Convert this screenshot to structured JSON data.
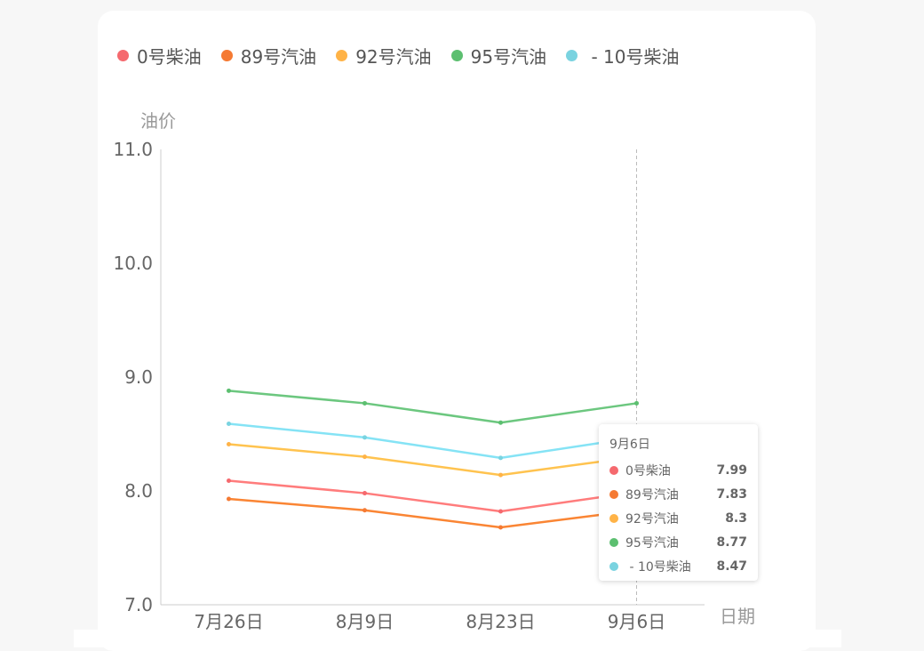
{
  "chart_data": {
    "type": "line",
    "categories": [
      "7月26日",
      "8月9日",
      "8月23日",
      "9月6日"
    ],
    "xlabel": "日期",
    "ylabel": "油价",
    "ylim": [
      7.0,
      11.0
    ],
    "yticks": [
      "7.0",
      "8.0",
      "9.0",
      "10.0",
      "11.0"
    ],
    "grid": false,
    "legend_position": "top",
    "series": [
      {
        "name": "0号柴油",
        "color": "#f5696e",
        "line_color": "#ff7c7c",
        "values": [
          8.09,
          7.98,
          7.82,
          7.99
        ]
      },
      {
        "name": "89号汽油",
        "color": "#f57a33",
        "line_color": "#fa8534",
        "values": [
          7.93,
          7.83,
          7.68,
          7.83
        ]
      },
      {
        "name": "92号汽油",
        "color": "#ffb347",
        "line_color": "#ffc34f",
        "values": [
          8.41,
          8.3,
          8.14,
          8.3
        ]
      },
      {
        "name": "95号汽油",
        "color": "#5cbf70",
        "line_color": "#6cc77f",
        "values": [
          8.88,
          8.77,
          8.6,
          8.77
        ]
      },
      {
        "name": " - 10号柴油",
        "color": "#7ad3e0",
        "line_color": "#85e3f5",
        "values": [
          8.59,
          8.47,
          8.29,
          8.47
        ]
      }
    ],
    "tooltip": {
      "title": "9月6日",
      "rows": [
        {
          "name": "0号柴油",
          "value": "7.99"
        },
        {
          "name": "89号汽油",
          "value": "7.83"
        },
        {
          "name": "92号汽油",
          "value": "8.3"
        },
        {
          "name": "95号汽油",
          "value": "8.77"
        },
        {
          "name": " - 10号柴油",
          "value": "8.47"
        }
      ]
    }
  }
}
